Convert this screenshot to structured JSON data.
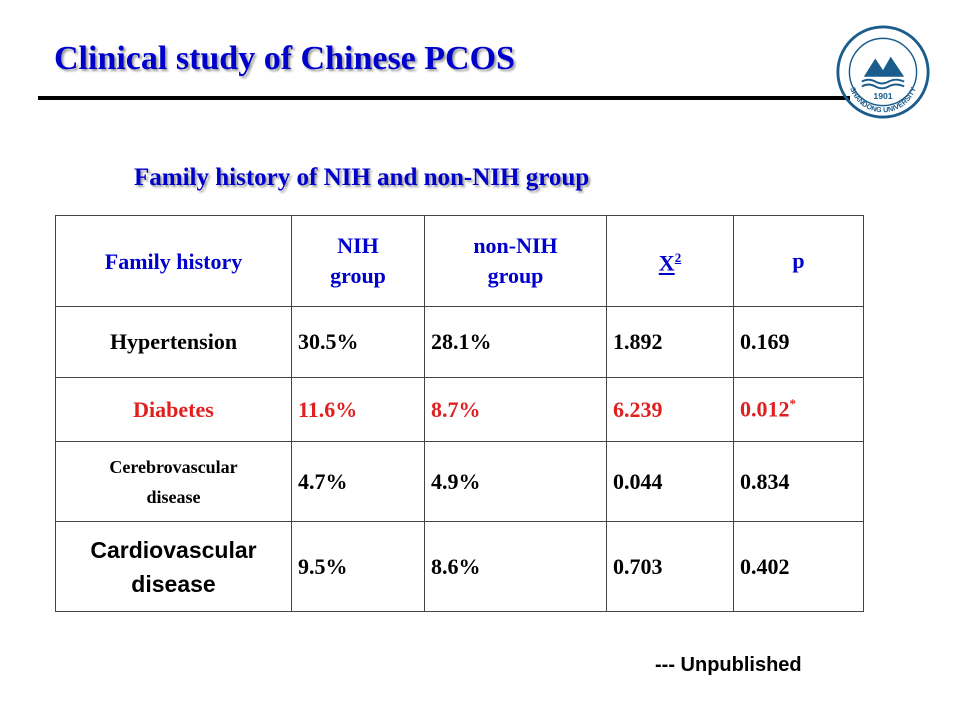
{
  "slide": {
    "title": "Clinical study of Chinese PCOS",
    "subtitle": "Family history of NIH and non-NIH group",
    "footer": "--- Unpublished"
  },
  "logo": {
    "name": "SHANDONG UNIVERSITY",
    "year": "1901",
    "color": "#1a5c8c"
  },
  "table": {
    "headers": {
      "family_history": "Family history",
      "nih_line1": "NIH",
      "nih_line2": "group",
      "non_nih_line1": "non-NIH",
      "non_nih_line2": "group",
      "x2_base": "X",
      "x2_sup": "2",
      "p": "p"
    },
    "rows": [
      {
        "label": "Hypertension",
        "nih": "30.5%",
        "non_nih": "28.1%",
        "x2": "1.892",
        "p": "0.169"
      },
      {
        "label": "Diabetes",
        "nih": "11.6%",
        "non_nih": "8.7%",
        "x2": "6.239",
        "p": "0.012",
        "p_mark": "*"
      },
      {
        "label_line1": "Cerebrovascular",
        "label_line2": "disease",
        "nih": "4.7%",
        "non_nih": "4.9%",
        "x2": "0.044",
        "p": "0.834"
      },
      {
        "label_line1": "Cardiovascular",
        "label_line2": "disease",
        "nih": "9.5%",
        "non_nih": "8.6%",
        "x2": "0.703",
        "p": "0.402"
      }
    ],
    "highlight_color": "#e02020",
    "header_color": "#0000cc"
  }
}
